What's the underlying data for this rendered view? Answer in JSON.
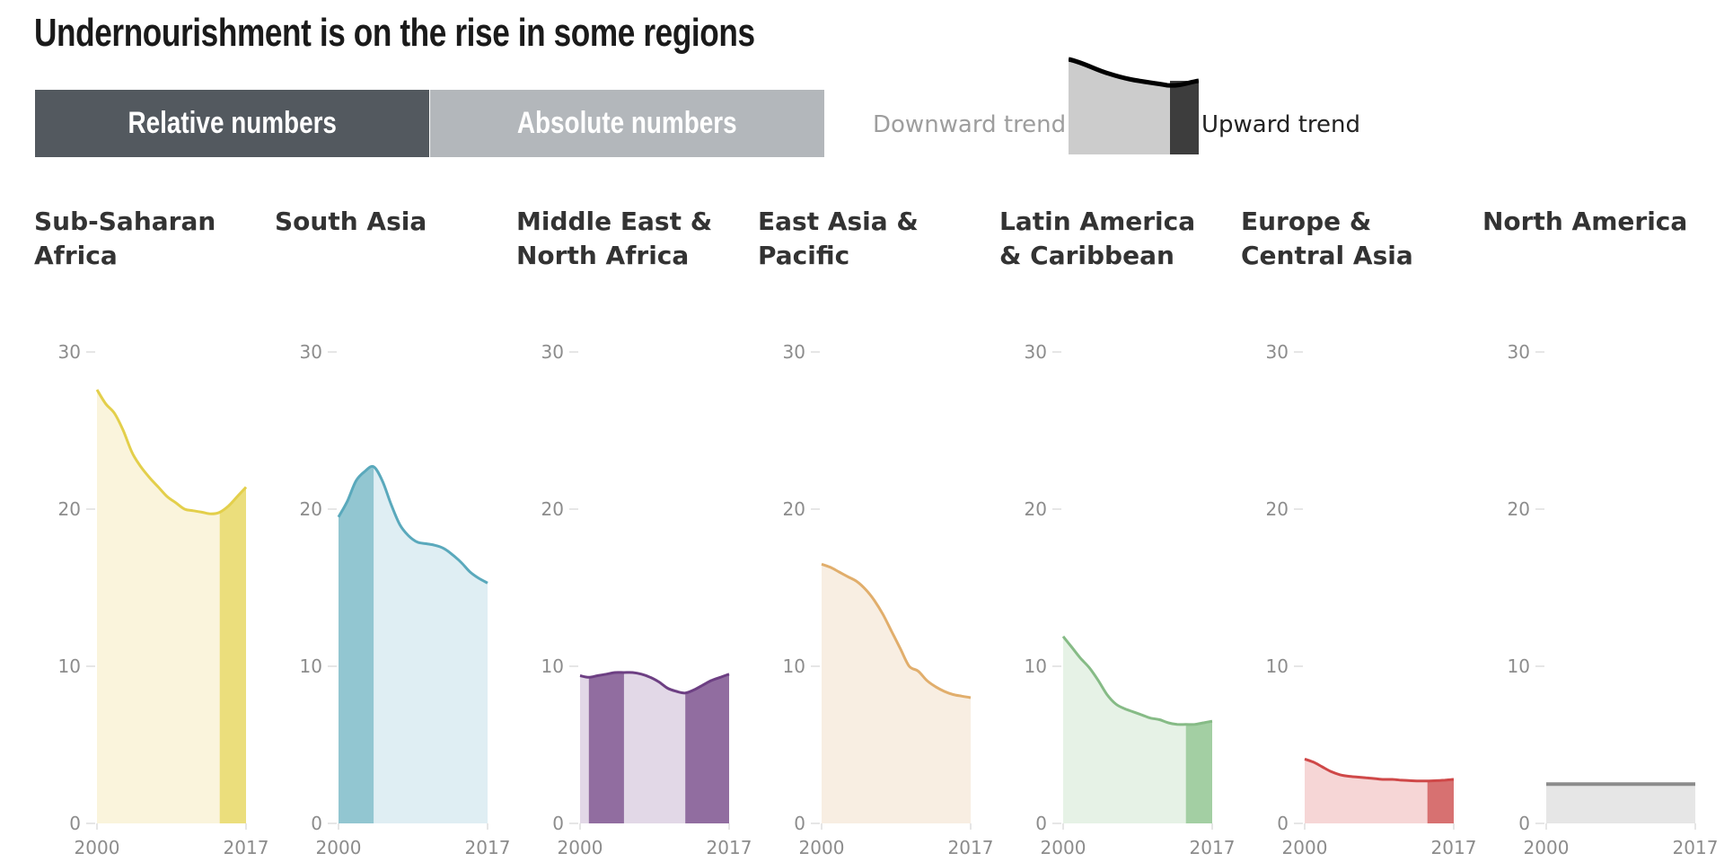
{
  "title": "Undernourishment is on the rise in some regions",
  "toggle": {
    "relative_label": "Relative numbers",
    "absolute_label": "Absolute numbers",
    "active": "relative"
  },
  "legend": {
    "downward_label": "Downward trend",
    "upward_label": "Upward trend",
    "downward_color": "#cccccc",
    "upward_color": "#3d3d3d",
    "line_color": "#000000"
  },
  "chart_data": {
    "type": "area",
    "x_ticks": [
      "2000",
      "2017"
    ],
    "y_ticks": [
      "0",
      "10",
      "20",
      "30"
    ],
    "ylim": [
      0,
      30
    ],
    "xlim": [
      2000,
      2017
    ],
    "grid": false,
    "series": [
      {
        "name": "Sub-Saharan Africa",
        "line_color": "#e3cf4b",
        "light_fill": "#faf4dc",
        "dark_fill": "#ebde7c",
        "x": [
          2000,
          2001,
          2002,
          2003,
          2004,
          2005,
          2006,
          2007,
          2008,
          2009,
          2010,
          2011,
          2012,
          2013,
          2014,
          2015,
          2016,
          2017
        ],
        "values": [
          27.6,
          26.7,
          26.1,
          25.0,
          23.6,
          22.7,
          22.0,
          21.4,
          20.8,
          20.4,
          20.0,
          19.9,
          19.8,
          19.7,
          19.8,
          20.2,
          20.8,
          21.4
        ],
        "upward_periods": [
          [
            2014,
            2017
          ]
        ]
      },
      {
        "name": "South Asia",
        "line_color": "#5aa9bc",
        "light_fill": "#dfeef3",
        "dark_fill": "#92c6d1",
        "x": [
          2000,
          2001,
          2002,
          2003,
          2004,
          2005,
          2006,
          2007,
          2008,
          2009,
          2010,
          2011,
          2012,
          2013,
          2014,
          2015,
          2016,
          2017
        ],
        "values": [
          19.5,
          20.5,
          21.8,
          22.4,
          22.7,
          21.8,
          20.3,
          19.0,
          18.3,
          17.9,
          17.8,
          17.7,
          17.5,
          17.1,
          16.6,
          16.0,
          15.6,
          15.3
        ],
        "upward_periods": [
          [
            2000,
            2004
          ]
        ]
      },
      {
        "name": "Middle East & North Africa",
        "line_color": "#6d3f83",
        "light_fill": "#e2d8e7",
        "dark_fill": "#916da0",
        "x": [
          2000,
          2001,
          2002,
          2003,
          2004,
          2005,
          2006,
          2007,
          2008,
          2009,
          2010,
          2011,
          2012,
          2013,
          2014,
          2015,
          2016,
          2017
        ],
        "values": [
          9.4,
          9.3,
          9.4,
          9.5,
          9.6,
          9.6,
          9.6,
          9.5,
          9.3,
          9.0,
          8.6,
          8.4,
          8.3,
          8.5,
          8.8,
          9.1,
          9.3,
          9.5
        ],
        "upward_periods": [
          [
            2001,
            2005
          ],
          [
            2012,
            2017
          ]
        ]
      },
      {
        "name": "East Asia & Pacific",
        "line_color": "#e1ae6c",
        "light_fill": "#f8eee2",
        "dark_fill": "#eccfa6",
        "x": [
          2000,
          2001,
          2002,
          2003,
          2004,
          2005,
          2006,
          2007,
          2008,
          2009,
          2010,
          2011,
          2012,
          2013,
          2014,
          2015,
          2016,
          2017
        ],
        "values": [
          16.5,
          16.3,
          16.0,
          15.7,
          15.4,
          14.9,
          14.2,
          13.3,
          12.2,
          11.1,
          10.0,
          9.7,
          9.1,
          8.7,
          8.4,
          8.2,
          8.1,
          8.0
        ],
        "upward_periods": []
      },
      {
        "name": "Latin America & Caribbean",
        "line_color": "#86bb86",
        "light_fill": "#e6f2e6",
        "dark_fill": "#a3cfa3",
        "x": [
          2000,
          2001,
          2002,
          2003,
          2004,
          2005,
          2006,
          2007,
          2008,
          2009,
          2010,
          2011,
          2012,
          2013,
          2014,
          2015,
          2016,
          2017
        ],
        "values": [
          11.9,
          11.2,
          10.5,
          9.9,
          9.1,
          8.2,
          7.6,
          7.3,
          7.1,
          6.9,
          6.7,
          6.6,
          6.4,
          6.3,
          6.3,
          6.3,
          6.4,
          6.5
        ],
        "upward_periods": [
          [
            2014,
            2017
          ]
        ]
      },
      {
        "name": "Europe & Central Asia",
        "line_color": "#cf4848",
        "light_fill": "#f6d6d6",
        "dark_fill": "#d77171",
        "x": [
          2000,
          2001,
          2002,
          2003,
          2004,
          2005,
          2006,
          2007,
          2008,
          2009,
          2010,
          2011,
          2012,
          2013,
          2014,
          2015,
          2016,
          2017
        ],
        "values": [
          4.1,
          3.9,
          3.6,
          3.3,
          3.1,
          3.0,
          2.95,
          2.9,
          2.85,
          2.8,
          2.8,
          2.75,
          2.72,
          2.7,
          2.7,
          2.72,
          2.75,
          2.8
        ],
        "upward_periods": [
          [
            2014,
            2017
          ]
        ]
      },
      {
        "name": "North America",
        "line_color": "#8c8c8c",
        "light_fill": "#e6e6e6",
        "dark_fill": "#bdbdbd",
        "x": [
          2000,
          2017
        ],
        "values": [
          2.5,
          2.5
        ],
        "upward_periods": []
      }
    ]
  }
}
